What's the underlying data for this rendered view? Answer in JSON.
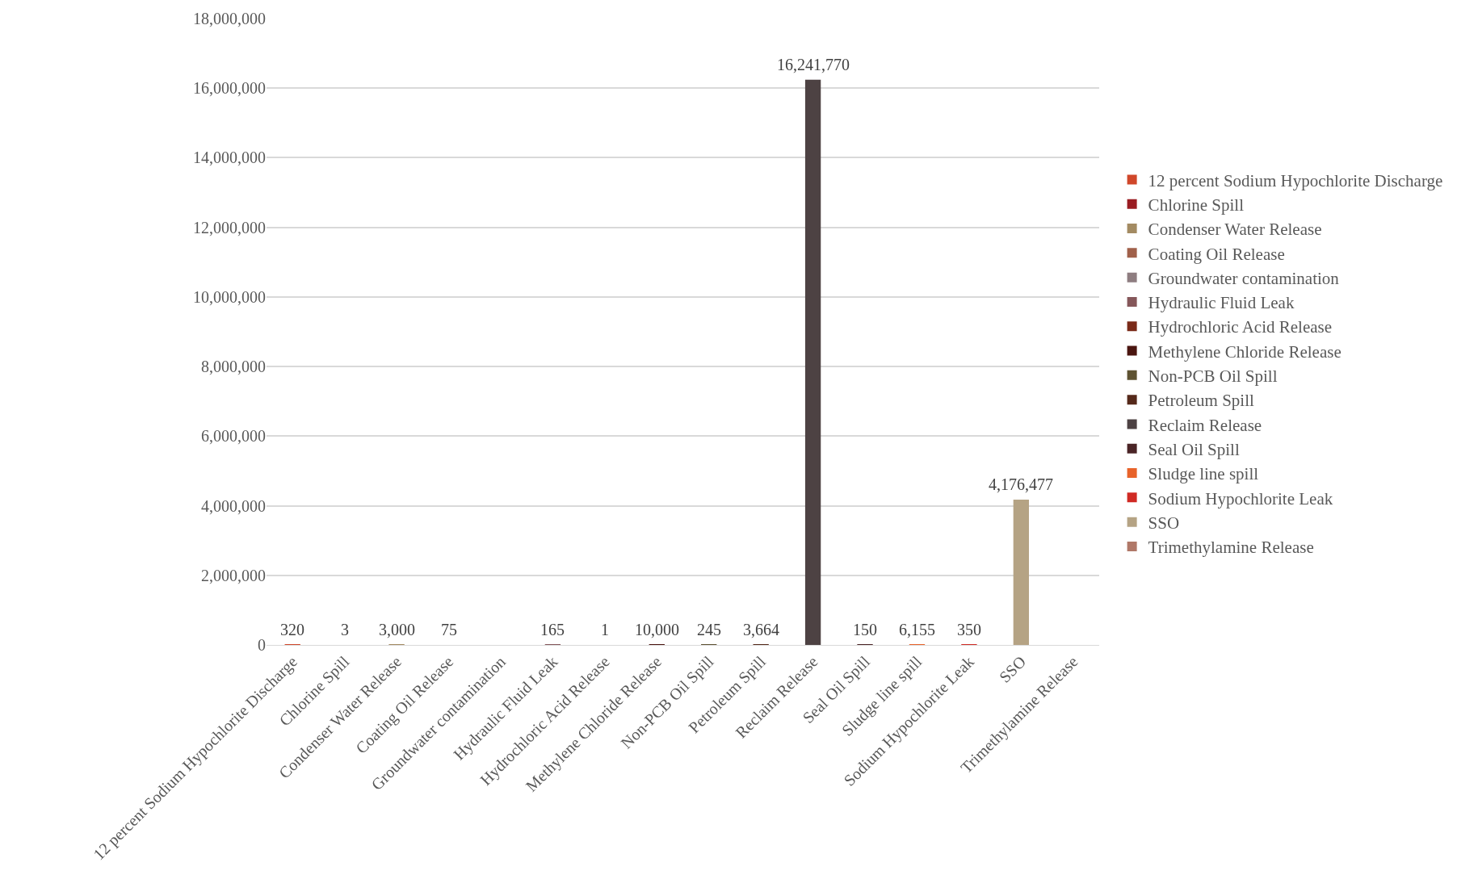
{
  "chart_data": {
    "type": "bar",
    "categories": [
      "12 percent Sodium Hypochlorite Discharge",
      "Chlorine Spill",
      "Condenser Water Release",
      "Coating Oil Release",
      "Groundwater contamination",
      "Hydraulic Fluid Leak",
      "Hydrochloric Acid Release",
      "Methylene Chloride Release",
      "Non-PCB Oil Spill",
      "Petroleum Spill",
      "Reclaim Release",
      "Seal Oil Spill",
      "Sludge line spill",
      "Sodium Hypochlorite Leak",
      "SSO",
      "Trimethylamine Release"
    ],
    "series": [
      {
        "name": "12 percent Sodium Hypochlorite Discharge",
        "color": "#d0472a",
        "values": [
          320,
          null,
          null,
          null,
          null,
          null,
          null,
          null,
          null,
          null,
          null,
          null,
          null,
          null,
          null,
          null
        ],
        "value_labels": [
          "320",
          null,
          null,
          null,
          null,
          null,
          null,
          null,
          null,
          null,
          null,
          null,
          null,
          null,
          null,
          null
        ]
      },
      {
        "name": "Chlorine Spill",
        "color": "#9a1c22",
        "values": [
          null,
          3,
          null,
          null,
          null,
          null,
          null,
          null,
          null,
          null,
          null,
          null,
          null,
          null,
          null,
          null
        ],
        "value_labels": [
          null,
          "3",
          null,
          null,
          null,
          null,
          null,
          null,
          null,
          null,
          null,
          null,
          null,
          null,
          null,
          null
        ]
      },
      {
        "name": "Condenser Water Release",
        "color": "#a38b62",
        "values": [
          null,
          null,
          3000,
          null,
          null,
          null,
          null,
          null,
          null,
          null,
          null,
          null,
          null,
          null,
          null,
          null
        ],
        "value_labels": [
          null,
          null,
          "3,000",
          null,
          null,
          null,
          null,
          null,
          null,
          null,
          null,
          null,
          null,
          null,
          null,
          null
        ]
      },
      {
        "name": "Coating Oil Release",
        "color": "#a0604a",
        "values": [
          null,
          null,
          null,
          75,
          null,
          null,
          null,
          null,
          null,
          null,
          null,
          null,
          null,
          null,
          null,
          null
        ],
        "value_labels": [
          null,
          null,
          null,
          "75",
          null,
          null,
          null,
          null,
          null,
          null,
          null,
          null,
          null,
          null,
          null,
          null
        ]
      },
      {
        "name": "Groundwater contamination",
        "color": "#8e7d80",
        "values": [
          null,
          null,
          null,
          null,
          null,
          null,
          null,
          null,
          null,
          null,
          null,
          null,
          null,
          null,
          null,
          null
        ]
      },
      {
        "name": "Hydraulic Fluid Leak",
        "color": "#85575a",
        "values": [
          null,
          null,
          null,
          null,
          null,
          165,
          null,
          null,
          null,
          null,
          null,
          null,
          null,
          null,
          null,
          null
        ],
        "value_labels": [
          null,
          null,
          null,
          null,
          null,
          "165",
          null,
          null,
          null,
          null,
          null,
          null,
          null,
          null,
          null,
          null
        ]
      },
      {
        "name": "Hydrochloric Acid Release",
        "color": "#7a2a18",
        "values": [
          null,
          null,
          null,
          null,
          null,
          null,
          1,
          null,
          null,
          null,
          null,
          null,
          null,
          null,
          null,
          null
        ],
        "value_labels": [
          null,
          null,
          null,
          null,
          null,
          null,
          "1",
          null,
          null,
          null,
          null,
          null,
          null,
          null,
          null,
          null
        ]
      },
      {
        "name": "Methylene Chloride Release",
        "color": "#4a1510",
        "values": [
          null,
          null,
          null,
          null,
          null,
          null,
          null,
          10000,
          null,
          null,
          null,
          null,
          null,
          null,
          null,
          null
        ],
        "value_labels": [
          null,
          null,
          null,
          null,
          null,
          null,
          null,
          "10,000",
          null,
          null,
          null,
          null,
          null,
          null,
          null,
          null
        ]
      },
      {
        "name": "Non-PCB Oil Spill",
        "color": "#5e5232",
        "values": [
          null,
          null,
          null,
          null,
          null,
          null,
          null,
          null,
          245,
          null,
          null,
          null,
          null,
          null,
          null,
          null
        ],
        "value_labels": [
          null,
          null,
          null,
          null,
          null,
          null,
          null,
          null,
          "245",
          null,
          null,
          null,
          null,
          null,
          null,
          null
        ]
      },
      {
        "name": "Petroleum Spill",
        "color": "#55291a",
        "values": [
          null,
          null,
          null,
          null,
          null,
          null,
          null,
          null,
          null,
          3664,
          null,
          null,
          null,
          null,
          null,
          null
        ],
        "value_labels": [
          null,
          null,
          null,
          null,
          null,
          null,
          null,
          null,
          null,
          "3,664",
          null,
          null,
          null,
          null,
          null,
          null
        ]
      },
      {
        "name": "Reclaim Release",
        "color": "#4d4243",
        "values": [
          null,
          null,
          null,
          null,
          null,
          null,
          null,
          null,
          null,
          null,
          16241770,
          null,
          null,
          null,
          null,
          null
        ],
        "value_labels": [
          null,
          null,
          null,
          null,
          null,
          null,
          null,
          null,
          null,
          null,
          "16,241,770",
          null,
          null,
          null,
          null,
          null
        ]
      },
      {
        "name": "Seal Oil Spill",
        "color": "#4a2426",
        "values": [
          null,
          null,
          null,
          null,
          null,
          null,
          null,
          null,
          null,
          null,
          null,
          150,
          null,
          null,
          null,
          null
        ],
        "value_labels": [
          null,
          null,
          null,
          null,
          null,
          null,
          null,
          null,
          null,
          null,
          null,
          "150",
          null,
          null,
          null,
          null
        ]
      },
      {
        "name": "Sludge line spill",
        "color": "#e8632a",
        "values": [
          null,
          null,
          null,
          null,
          null,
          null,
          null,
          null,
          null,
          null,
          null,
          null,
          6155,
          null,
          null,
          null
        ],
        "value_labels": [
          null,
          null,
          null,
          null,
          null,
          null,
          null,
          null,
          null,
          null,
          null,
          null,
          "6,155",
          null,
          null,
          null
        ]
      },
      {
        "name": "Sodium Hypochlorite Leak",
        "color": "#d02a24",
        "values": [
          null,
          null,
          null,
          null,
          null,
          null,
          null,
          null,
          null,
          null,
          null,
          null,
          null,
          350,
          null,
          null
        ],
        "value_labels": [
          null,
          null,
          null,
          null,
          null,
          null,
          null,
          null,
          null,
          null,
          null,
          null,
          null,
          "350",
          null,
          null
        ]
      },
      {
        "name": "SSO",
        "color": "#b5a384",
        "values": [
          null,
          null,
          null,
          null,
          null,
          null,
          null,
          null,
          null,
          null,
          null,
          null,
          null,
          null,
          4176477,
          null
        ],
        "value_labels": [
          null,
          null,
          null,
          null,
          null,
          null,
          null,
          null,
          null,
          null,
          null,
          null,
          null,
          null,
          "4,176,477",
          null
        ]
      },
      {
        "name": "Trimethylamine Release",
        "color": "#b07868",
        "values": [
          null,
          null,
          null,
          null,
          null,
          null,
          null,
          null,
          null,
          null,
          null,
          null,
          null,
          null,
          null,
          null
        ]
      }
    ],
    "ylim": [
      0,
      18000000
    ],
    "yticks": [
      {
        "value": 0,
        "label": "0"
      },
      {
        "value": 2000000,
        "label": "2,000,000"
      },
      {
        "value": 4000000,
        "label": "4,000,000"
      },
      {
        "value": 6000000,
        "label": "6,000,000"
      },
      {
        "value": 8000000,
        "label": "8,000,000"
      },
      {
        "value": 10000000,
        "label": "10,000,000"
      },
      {
        "value": 12000000,
        "label": "12,000,000"
      },
      {
        "value": 14000000,
        "label": "14,000,000"
      },
      {
        "value": 16000000,
        "label": "16,000,000"
      },
      {
        "value": 18000000,
        "label": "18,000,000"
      }
    ],
    "grid": "y",
    "legend": "right"
  }
}
